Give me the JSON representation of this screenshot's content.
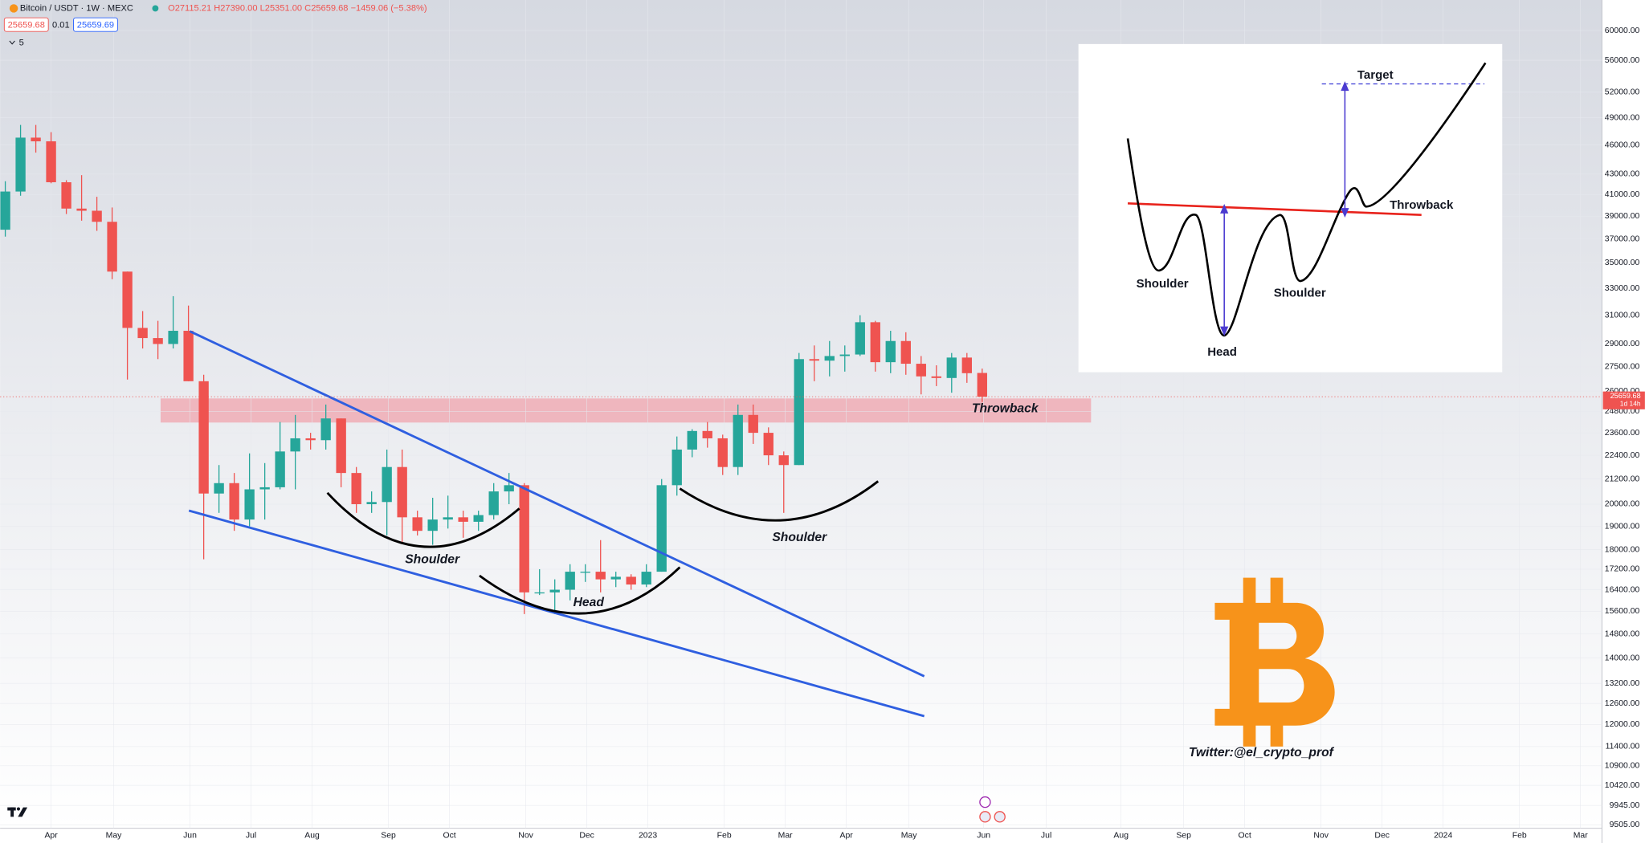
{
  "header": {
    "symbol": "Bitcoin / USDT · 1W · MEXC",
    "ohlc": [
      "O27115.21",
      "H27390.00",
      "L25351.00",
      "C25659.68",
      "−1459.06 (−5.38%)"
    ],
    "bid": "25659.68",
    "spread": "0.01",
    "ask": "25659.69",
    "indicators": "5"
  },
  "chart_data": {
    "type": "candlestick",
    "log_scale": true,
    "up_color": "#26a69a",
    "down_color": "#ef5350",
    "x": [
      0,
      1,
      2,
      3,
      4,
      5,
      6,
      7,
      8,
      9,
      10,
      11,
      12,
      13,
      14,
      15,
      16,
      17,
      18,
      19,
      20,
      21,
      22,
      23,
      24,
      25,
      26,
      27,
      28,
      29,
      30,
      31,
      32,
      33,
      34,
      35,
      36,
      37,
      38,
      39,
      40,
      41,
      42,
      43,
      44,
      45,
      46,
      47,
      48,
      49,
      50,
      51,
      52,
      53,
      54,
      55,
      56,
      57,
      58,
      59,
      60,
      61,
      62,
      63,
      64
    ],
    "open": [
      37800,
      41300,
      46800,
      46400,
      42200,
      39700,
      39500,
      38500,
      34300,
      30100,
      29400,
      29000,
      29900,
      26600,
      20500,
      21000,
      19300,
      20700,
      20800,
      22600,
      23300,
      23200,
      24400,
      21500,
      20000,
      20100,
      21800,
      19400,
      18800,
      19300,
      19400,
      19200,
      19500,
      20600,
      20900,
      16300,
      16300,
      16400,
      17100,
      17100,
      16800,
      16900,
      16600,
      17100,
      20900,
      22700,
      23700,
      23300,
      21800,
      24600,
      23600,
      22400,
      21900,
      28000,
      27900,
      28200,
      28300,
      30500,
      27800,
      29200,
      27700,
      26900,
      26800,
      28100,
      27115.21
    ],
    "high": [
      42300,
      48200,
      48200,
      47400,
      42400,
      42900,
      40800,
      39800,
      34300,
      31300,
      30600,
      32400,
      31700,
      27000,
      21900,
      21500,
      22500,
      22000,
      24200,
      24600,
      23600,
      25200,
      24400,
      21800,
      20600,
      22700,
      22700,
      19700,
      20300,
      20400,
      19700,
      19700,
      21000,
      21500,
      21000,
      17200,
      16800,
      17400,
      17400,
      18400,
      17100,
      17000,
      17400,
      21200,
      23400,
      23800,
      24200,
      23500,
      25200,
      25200,
      23900,
      22600,
      28400,
      28900,
      29200,
      28900,
      31000,
      30600,
      29900,
      29800,
      28200,
      27600,
      28400,
      28400,
      27390
    ],
    "low": [
      37200,
      40900,
      45200,
      42100,
      39200,
      38600,
      37700,
      33700,
      26700,
      28700,
      28000,
      28700,
      26600,
      17600,
      19600,
      18800,
      19000,
      19300,
      20700,
      20700,
      22700,
      22700,
      20800,
      19600,
      19600,
      18600,
      18300,
      18600,
      18200,
      18900,
      18500,
      18800,
      19300,
      20000,
      15500,
      16200,
      15500,
      16000,
      16700,
      16300,
      16500,
      16400,
      16500,
      17100,
      20400,
      22300,
      22800,
      21400,
      21400,
      23000,
      21900,
      19600,
      21900,
      26600,
      26900,
      27200,
      28200,
      27200,
      27100,
      27000,
      25800,
      26300,
      25900,
      26500,
      25351
    ],
    "close": [
      41300,
      46800,
      46400,
      42200,
      39700,
      39500,
      38500,
      34300,
      30100,
      29400,
      29000,
      29900,
      26600,
      20500,
      21000,
      19300,
      20700,
      20800,
      22600,
      23300,
      23200,
      24400,
      21500,
      20000,
      20100,
      21800,
      19400,
      18800,
      19300,
      19400,
      19200,
      19500,
      20600,
      20900,
      16300,
      16300,
      16400,
      17100,
      17100,
      16800,
      16900,
      16600,
      17100,
      20900,
      22700,
      23700,
      23300,
      21800,
      24600,
      23600,
      22400,
      21900,
      28000,
      27900,
      28200,
      28300,
      30500,
      27800,
      29200,
      27700,
      26900,
      26800,
      28100,
      27100,
      25659.68
    ],
    "ylim": [
      9430,
      64400
    ],
    "yticks": [
      {
        "value": 60000,
        "label": "60000.00"
      },
      {
        "value": 56000,
        "label": "56000.00"
      },
      {
        "value": 52000,
        "label": "52000.00"
      },
      {
        "value": 49000,
        "label": "49000.00"
      },
      {
        "value": 46000,
        "label": "46000.00"
      },
      {
        "value": 43000,
        "label": "43000.00"
      },
      {
        "value": 41000,
        "label": "41000.00"
      },
      {
        "value": 39000,
        "label": "39000.00"
      },
      {
        "value": 37000,
        "label": "37000.00"
      },
      {
        "value": 35000,
        "label": "35000.00"
      },
      {
        "value": 33000,
        "label": "33000.00"
      },
      {
        "value": 31000,
        "label": "31000.00"
      },
      {
        "value": 29000,
        "label": "29000.00"
      },
      {
        "value": 27500,
        "label": "27500.00"
      },
      {
        "value": 26000,
        "label": "26000.00"
      },
      {
        "value": 24800,
        "label": "24800.00"
      },
      {
        "value": 23600,
        "label": "23600.00"
      },
      {
        "value": 22400,
        "label": "22400.00"
      },
      {
        "value": 21200,
        "label": "21200.00"
      },
      {
        "value": 20000,
        "label": "20000.00"
      },
      {
        "value": 19000,
        "label": "19000.00"
      },
      {
        "value": 18000,
        "label": "18000.00"
      },
      {
        "value": 17200,
        "label": "17200.00"
      },
      {
        "value": 16400,
        "label": "16400.00"
      },
      {
        "value": 15600,
        "label": "15600.00"
      },
      {
        "value": 14800,
        "label": "14800.00"
      },
      {
        "value": 14000,
        "label": "14000.00"
      },
      {
        "value": 13200,
        "label": "13200.00"
      },
      {
        "value": 12600,
        "label": "12600.00"
      },
      {
        "value": 12000,
        "label": "12000.00"
      },
      {
        "value": 11400,
        "label": "11400.00"
      },
      {
        "value": 10900,
        "label": "10900.00"
      },
      {
        "value": 10420,
        "label": "10420.00"
      },
      {
        "value": 9945,
        "label": "9945.00"
      },
      {
        "value": 9505,
        "label": "9505.00"
      }
    ],
    "xlim": [
      -0.34,
      104.6
    ],
    "xticks": [
      {
        "value": 3.0,
        "label": "Apr"
      },
      {
        "value": 7.1,
        "label": "May"
      },
      {
        "value": 12.1,
        "label": "Jun"
      },
      {
        "value": 16.1,
        "label": "Jul"
      },
      {
        "value": 20.1,
        "label": "Aug"
      },
      {
        "value": 25.1,
        "label": "Sep"
      },
      {
        "value": 29.1,
        "label": "Oct"
      },
      {
        "value": 34.1,
        "label": "Nov"
      },
      {
        "value": 38.1,
        "label": "Dec"
      },
      {
        "value": 42.1,
        "label": "2023"
      },
      {
        "value": 47.1,
        "label": "Feb"
      },
      {
        "value": 51.1,
        "label": "Mar"
      },
      {
        "value": 55.1,
        "label": "Apr"
      },
      {
        "value": 59.2,
        "label": "May"
      },
      {
        "value": 64.1,
        "label": "Jun"
      },
      {
        "value": 68.2,
        "label": "Jul"
      },
      {
        "value": 73.1,
        "label": "Aug"
      },
      {
        "value": 77.2,
        "label": "Sep"
      },
      {
        "value": 81.2,
        "label": "Oct"
      },
      {
        "value": 86.2,
        "label": "Nov"
      },
      {
        "value": 90.2,
        "label": "Dec"
      },
      {
        "value": 94.2,
        "label": "2024"
      },
      {
        "value": 99.2,
        "label": "Feb"
      },
      {
        "value": 103.2,
        "label": "Mar"
      }
    ],
    "last_price": 25659.68,
    "countdown": "1d 14h",
    "annotations": [
      "Shoulder",
      "Head",
      "Shoulder",
      "Throwback",
      "Twitter:@el_crypto_prof"
    ]
  },
  "inset": {
    "target": "Target",
    "throwback": "Throwback",
    "left_shoulder": "Shoulder",
    "right_shoulder": "Shoulder",
    "head": "Head"
  }
}
